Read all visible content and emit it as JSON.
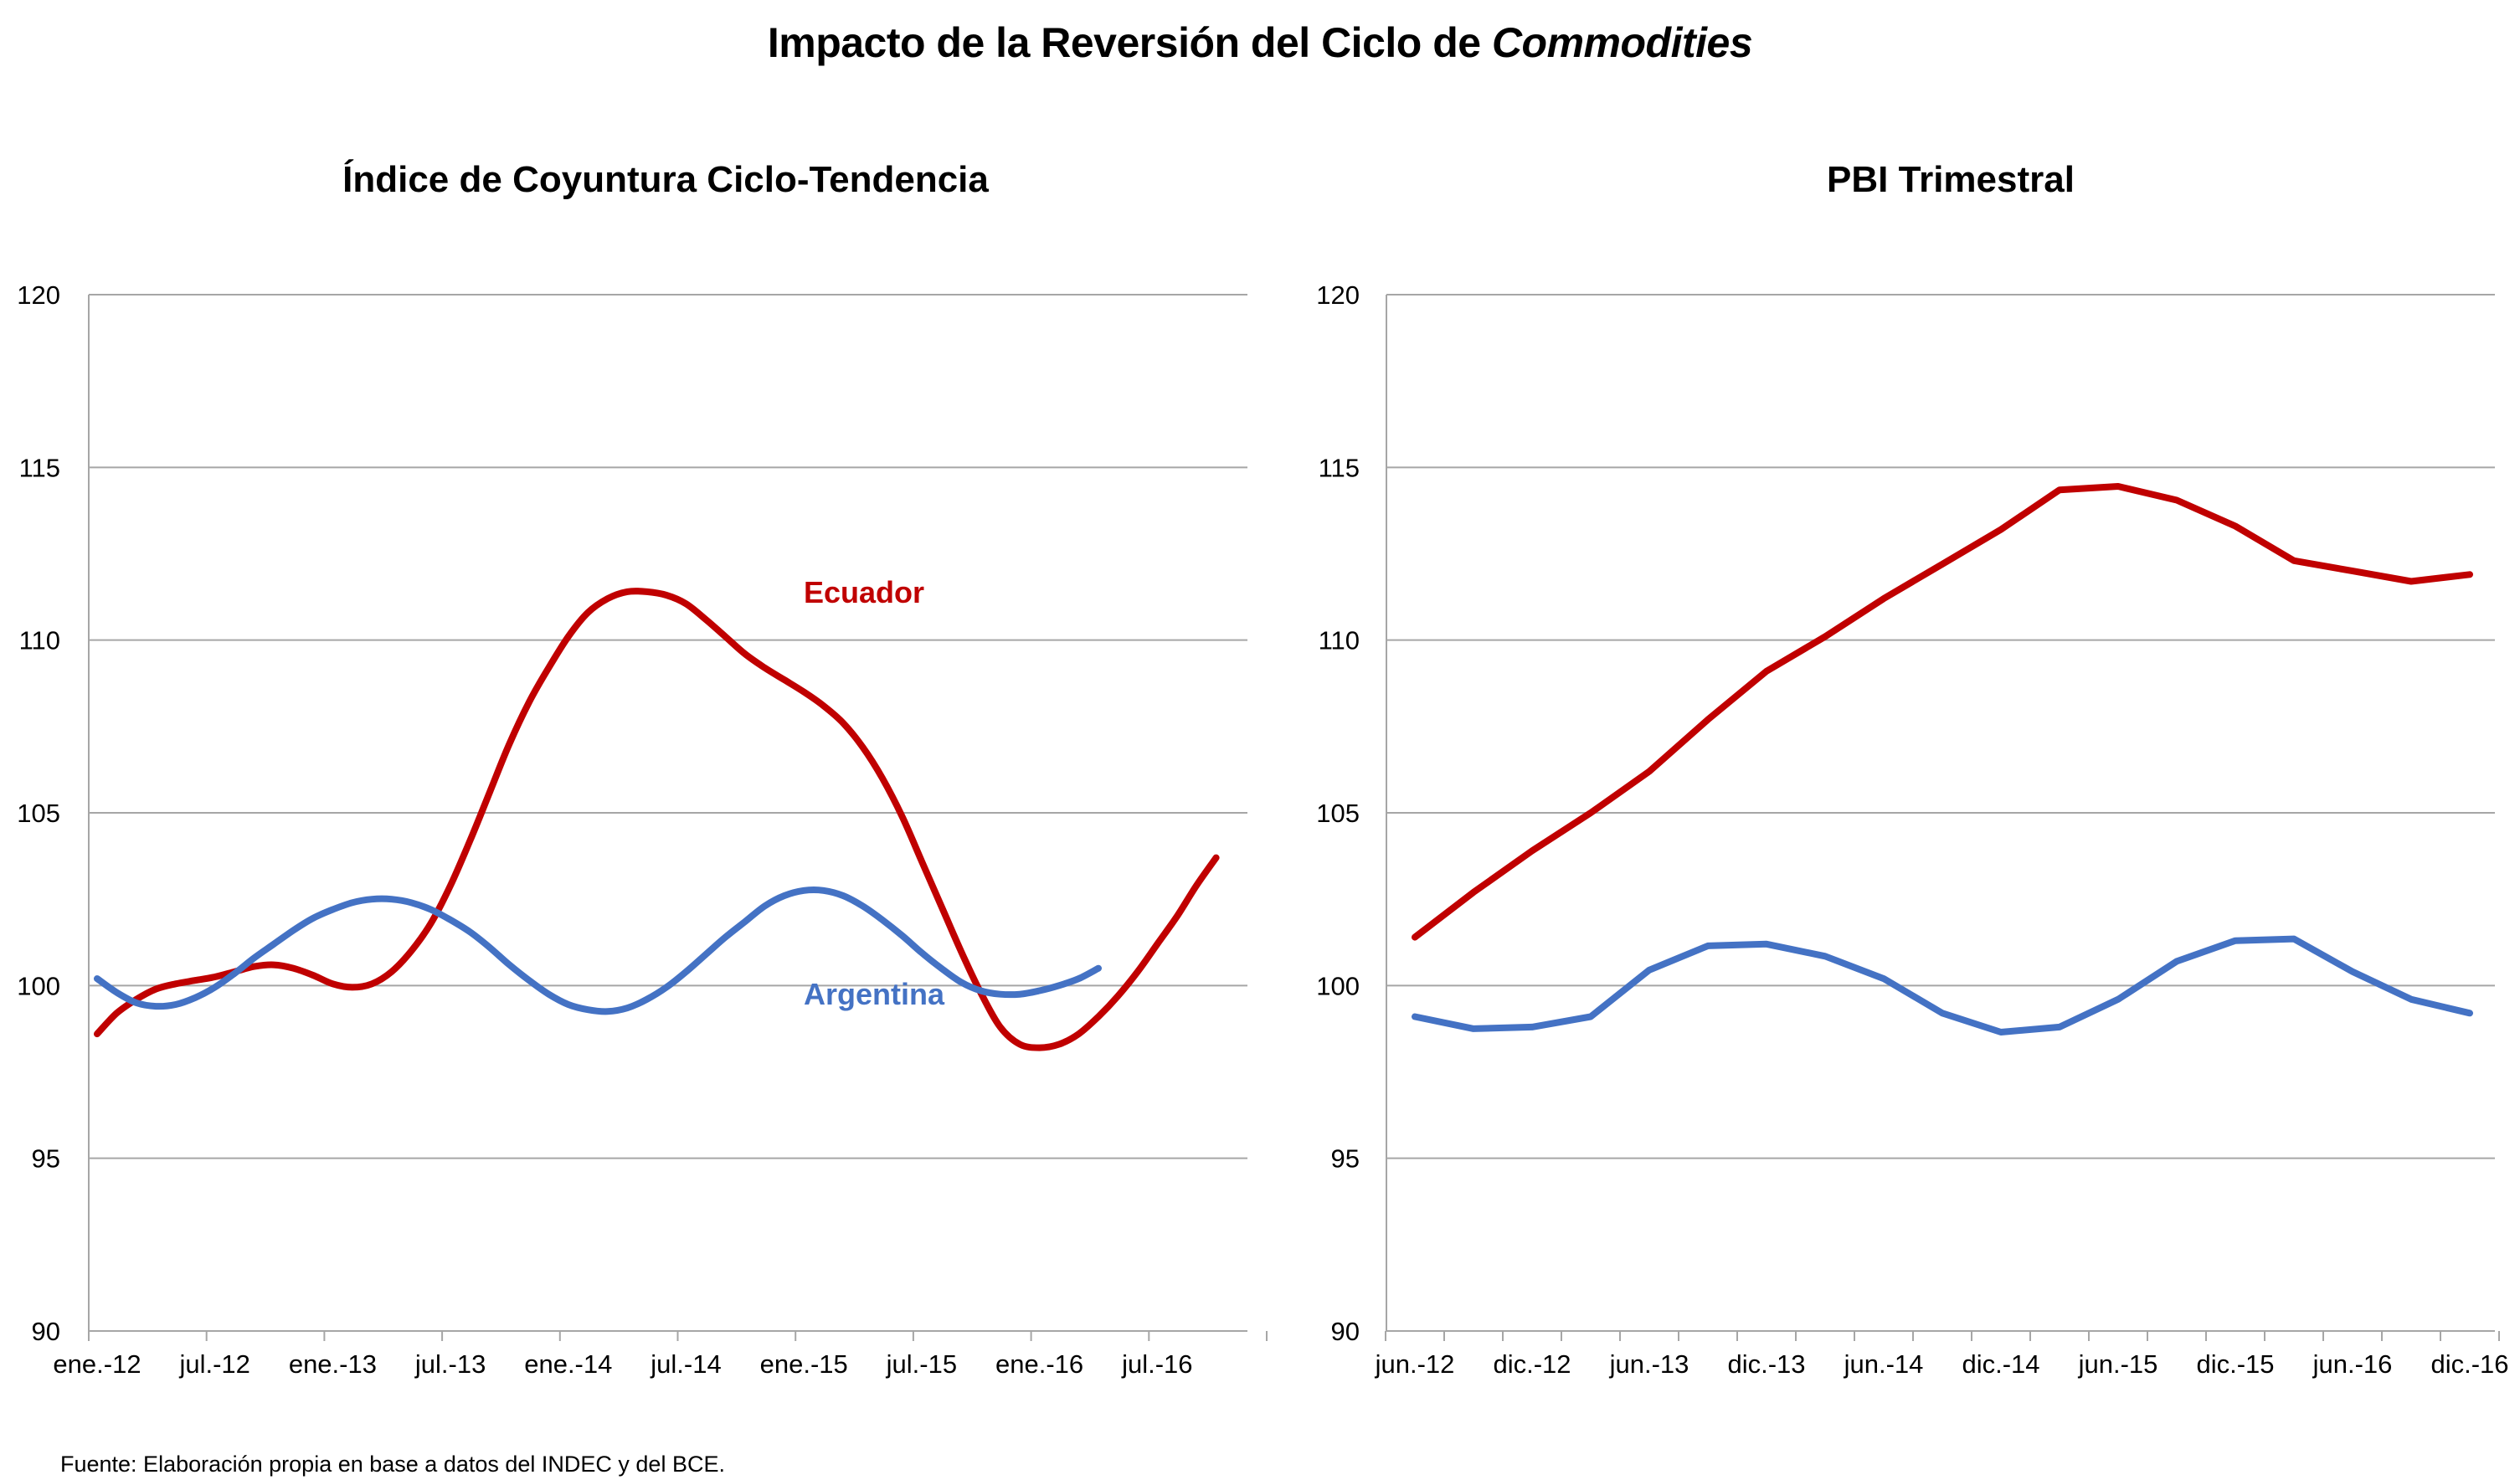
{
  "title": {
    "main": "Impacto de la Reversión del Ciclo de ",
    "italic": "Commodities"
  },
  "source": "Fuente: Elaboración propia en base a datos del INDEC y del BCE.",
  "colors": {
    "Ecuador": "#C00000",
    "Argentina": "#4472C4",
    "grid": "#A6A6A6"
  },
  "chart_data": [
    {
      "type": "line",
      "title": "Índice de Coyuntura Ciclo-Tendencia",
      "ylim": [
        90,
        120
      ],
      "yticks": [
        90,
        95,
        100,
        105,
        110,
        115,
        120
      ],
      "x_tick_labels": [
        "ene.-12",
        "jul.-12",
        "ene.-13",
        "jul.-13",
        "ene.-14",
        "jul.-14",
        "ene.-15",
        "jul.-15",
        "ene.-16",
        "jul.-16"
      ],
      "x_tick_months": [
        0,
        6,
        12,
        18,
        24,
        30,
        36,
        42,
        48,
        54
      ],
      "x_count": 60,
      "grid": true,
      "series": [
        {
          "name": "Ecuador",
          "label_at": "inline",
          "points": [
            [
              0,
              98.6
            ],
            [
              1,
              99.2
            ],
            [
              2,
              99.6
            ],
            [
              3,
              99.9
            ],
            [
              4,
              100.05
            ],
            [
              5,
              100.15
            ],
            [
              6,
              100.25
            ],
            [
              7,
              100.4
            ],
            [
              8,
              100.55
            ],
            [
              9,
              100.6
            ],
            [
              10,
              100.5
            ],
            [
              11,
              100.3
            ],
            [
              12,
              100.05
            ],
            [
              13,
              99.95
            ],
            [
              14,
              100.05
            ],
            [
              15,
              100.4
            ],
            [
              16,
              101.0
            ],
            [
              17,
              101.8
            ],
            [
              18,
              102.9
            ],
            [
              19,
              104.2
            ],
            [
              20,
              105.6
            ],
            [
              21,
              107.0
            ],
            [
              22,
              108.2
            ],
            [
              23,
              109.2
            ],
            [
              24,
              110.1
            ],
            [
              25,
              110.8
            ],
            [
              26,
              111.2
            ],
            [
              27,
              111.4
            ],
            [
              28,
              111.4
            ],
            [
              29,
              111.3
            ],
            [
              30,
              111.05
            ],
            [
              31,
              110.6
            ],
            [
              32,
              110.1
            ],
            [
              33,
              109.6
            ],
            [
              34,
              109.2
            ],
            [
              35,
              108.85
            ],
            [
              36,
              108.5
            ],
            [
              37,
              108.1
            ],
            [
              38,
              107.6
            ],
            [
              39,
              106.9
            ],
            [
              40,
              106.0
            ],
            [
              41,
              104.9
            ],
            [
              42,
              103.6
            ],
            [
              43,
              102.3
            ],
            [
              44,
              101.0
            ],
            [
              45,
              99.8
            ],
            [
              46,
              98.8
            ],
            [
              47,
              98.3
            ],
            [
              48,
              98.2
            ],
            [
              49,
              98.3
            ],
            [
              50,
              98.6
            ],
            [
              51,
              99.1
            ],
            [
              52,
              99.7
            ],
            [
              53,
              100.4
            ],
            [
              54,
              101.2
            ],
            [
              55,
              102.0
            ],
            [
              56,
              102.9
            ],
            [
              57,
              103.7
            ]
          ]
        },
        {
          "name": "Argentina",
          "label_at": "inline",
          "points": [
            [
              0,
              100.2
            ],
            [
              1,
              99.8
            ],
            [
              2,
              99.5
            ],
            [
              3,
              99.4
            ],
            [
              4,
              99.45
            ],
            [
              5,
              99.65
            ],
            [
              6,
              99.95
            ],
            [
              7,
              100.35
            ],
            [
              8,
              100.8
            ],
            [
              9,
              101.2
            ],
            [
              10,
              101.6
            ],
            [
              11,
              101.95
            ],
            [
              12,
              102.2
            ],
            [
              13,
              102.4
            ],
            [
              14,
              102.5
            ],
            [
              15,
              102.5
            ],
            [
              16,
              102.4
            ],
            [
              17,
              102.2
            ],
            [
              18,
              101.9
            ],
            [
              19,
              101.55
            ],
            [
              20,
              101.1
            ],
            [
              21,
              100.6
            ],
            [
              22,
              100.15
            ],
            [
              23,
              99.75
            ],
            [
              24,
              99.45
            ],
            [
              25,
              99.3
            ],
            [
              26,
              99.25
            ],
            [
              27,
              99.35
            ],
            [
              28,
              99.6
            ],
            [
              29,
              99.95
            ],
            [
              30,
              100.4
            ],
            [
              31,
              100.9
            ],
            [
              32,
              101.4
            ],
            [
              33,
              101.85
            ],
            [
              34,
              102.3
            ],
            [
              35,
              102.6
            ],
            [
              36,
              102.75
            ],
            [
              37,
              102.75
            ],
            [
              38,
              102.6
            ],
            [
              39,
              102.3
            ],
            [
              40,
              101.9
            ],
            [
              41,
              101.45
            ],
            [
              42,
              100.95
            ],
            [
              43,
              100.5
            ],
            [
              44,
              100.1
            ],
            [
              45,
              99.85
            ],
            [
              46,
              99.75
            ],
            [
              47,
              99.75
            ],
            [
              48,
              99.85
            ],
            [
              49,
              100.0
            ],
            [
              50,
              100.2
            ],
            [
              51,
              100.5
            ]
          ]
        }
      ]
    },
    {
      "type": "line",
      "title": "PBI Trimestral",
      "ylim": [
        90,
        120
      ],
      "yticks": [
        90,
        95,
        100,
        105,
        110,
        115,
        120
      ],
      "x_tick_labels": [
        "jun.-12",
        "dic.-12",
        "jun.-13",
        "dic.-13",
        "jun.-14",
        "dic.-14",
        "jun.-15",
        "dic.-15",
        "jun.-16",
        "dic.-16"
      ],
      "x_count": 19,
      "grid": true,
      "series": [
        {
          "name": "Ecuador",
          "values": [
            101.4,
            102.7,
            103.9,
            105.0,
            106.2,
            107.7,
            109.1,
            110.1,
            111.2,
            112.2,
            113.2,
            114.35,
            114.45,
            114.05,
            113.3,
            112.3,
            112.0,
            111.7,
            111.9
          ]
        },
        {
          "name": "Argentina",
          "values": [
            99.1,
            98.75,
            98.8,
            99.1,
            100.45,
            101.15,
            101.2,
            100.85,
            100.2,
            99.2,
            98.65,
            98.8,
            99.6,
            100.7,
            101.3,
            101.35,
            100.4,
            99.6,
            99.2
          ]
        }
      ]
    }
  ]
}
